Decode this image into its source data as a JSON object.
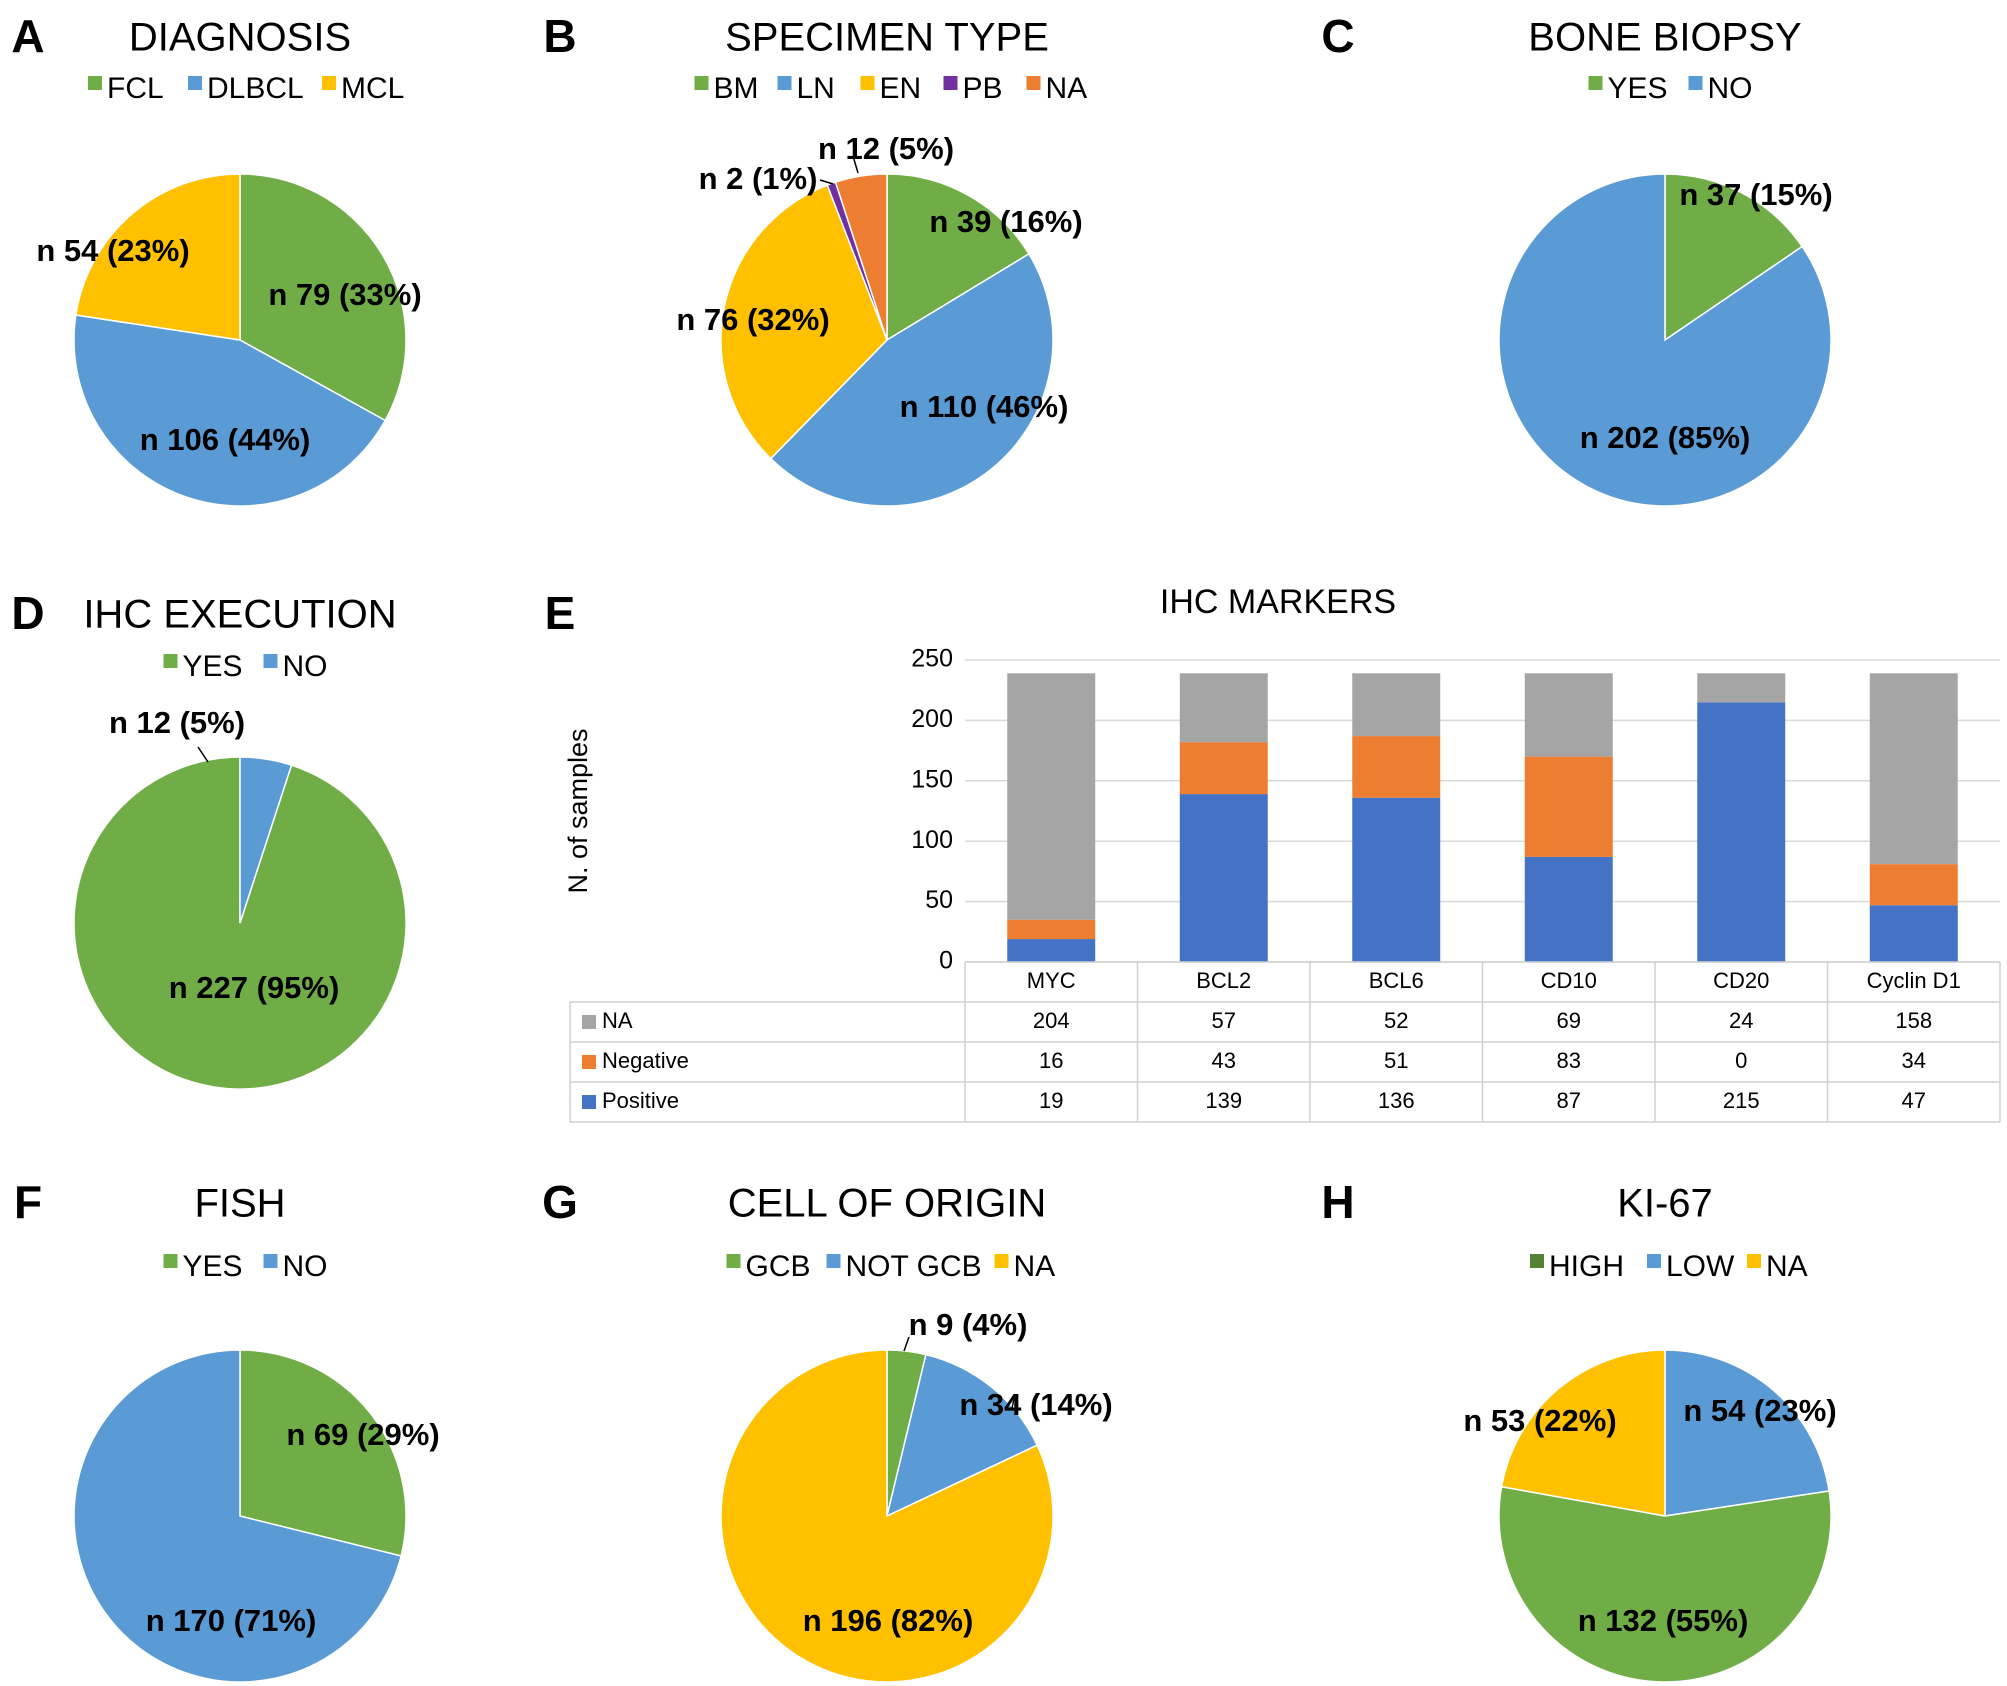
{
  "figure": {
    "background": "#ffffff"
  },
  "chart_data": [
    {
      "id": "A",
      "type": "pie",
      "panel_letter": "A",
      "title": "DIAGNOSIS",
      "legend": [
        "FCL",
        "DLBCL",
        "MCL"
      ],
      "slices": [
        {
          "name": "FCL",
          "value": 79,
          "label": "n 79 (33%)",
          "color": "#70ad47"
        },
        {
          "name": "DLBCL",
          "value": 106,
          "label": "n 106 (44%)",
          "color": "#5b9bd5"
        },
        {
          "name": "MCL",
          "value": 54,
          "label": "n 54 (23%)",
          "color": "#ffc000"
        }
      ]
    },
    {
      "id": "B",
      "type": "pie",
      "panel_letter": "B",
      "title": "SPECIMEN TYPE",
      "legend": [
        "BM",
        "LN",
        "EN",
        "PB",
        "NA"
      ],
      "slices": [
        {
          "name": "BM",
          "value": 39,
          "label": "n 39 (16%)",
          "color": "#70ad47"
        },
        {
          "name": "LN",
          "value": 110,
          "label": "n 110 (46%)",
          "color": "#5b9bd5"
        },
        {
          "name": "EN",
          "value": 76,
          "label": "n 76 (32%)",
          "color": "#ffc000"
        },
        {
          "name": "PB",
          "value": 2,
          "label": "n 2 (1%)",
          "color": "#7030a0"
        },
        {
          "name": "NA",
          "value": 12,
          "label": "n 12 (5%)",
          "color": "#ed7d31"
        }
      ]
    },
    {
      "id": "C",
      "type": "pie",
      "panel_letter": "C",
      "title": "BONE BIOPSY",
      "legend": [
        "YES",
        "NO"
      ],
      "slices": [
        {
          "name": "YES",
          "value": 37,
          "label": "n 37 (15%)",
          "color": "#70ad47"
        },
        {
          "name": "NO",
          "value": 202,
          "label": "n 202 (85%)",
          "color": "#5b9bd5"
        }
      ]
    },
    {
      "id": "D",
      "type": "pie",
      "panel_letter": "D",
      "title": "IHC EXECUTION",
      "legend": [
        "YES",
        "NO"
      ],
      "slices": [
        {
          "name": "YES",
          "value": 227,
          "label": "n 227 (95%)",
          "color": "#70ad47"
        },
        {
          "name": "NO",
          "value": 12,
          "label": "n 12 (5%)",
          "color": "#5b9bd5"
        }
      ]
    },
    {
      "id": "E",
      "type": "bar",
      "stacked": true,
      "panel_letter": "E",
      "title": "IHC MARKERS",
      "xlabel": "",
      "ylabel": "N. of samples",
      "ylim": [
        0,
        250
      ],
      "yticks": [
        0,
        50,
        100,
        150,
        200,
        250
      ],
      "grid": true,
      "categories": [
        "MYC",
        "BCL2",
        "BCL6",
        "CD10",
        "CD20",
        "Cyclin D1"
      ],
      "series": [
        {
          "name": "Positive",
          "color": "#4472c4",
          "values": [
            19,
            139,
            136,
            87,
            215,
            47
          ]
        },
        {
          "name": "Negative",
          "color": "#ed7d31",
          "values": [
            16,
            43,
            51,
            83,
            0,
            34
          ]
        },
        {
          "name": "NA",
          "color": "#a5a5a5",
          "values": [
            204,
            57,
            52,
            69,
            24,
            158
          ]
        }
      ],
      "table_rows": [
        "NA",
        "Negative",
        "Positive"
      ]
    },
    {
      "id": "F",
      "type": "pie",
      "panel_letter": "F",
      "title": "FISH",
      "legend": [
        "YES",
        "NO"
      ],
      "slices": [
        {
          "name": "YES",
          "value": 69,
          "label": "n 69 (29%)",
          "color": "#70ad47"
        },
        {
          "name": "NO",
          "value": 170,
          "label": "n 170 (71%)",
          "color": "#5b9bd5"
        }
      ]
    },
    {
      "id": "G",
      "type": "pie",
      "panel_letter": "G",
      "title": "CELL OF ORIGIN",
      "legend": [
        "GCB",
        "NOT GCB",
        "NA"
      ],
      "slices": [
        {
          "name": "GCB",
          "value": 9,
          "label": "n 9 (4%)",
          "color": "#70ad47"
        },
        {
          "name": "NOT GCB",
          "value": 34,
          "label": "n 34 (14%)",
          "color": "#5b9bd5"
        },
        {
          "name": "NA",
          "value": 196,
          "label": "n 196 (82%)",
          "color": "#ffc000"
        }
      ]
    },
    {
      "id": "H",
      "type": "pie",
      "panel_letter": "H",
      "title": "KI-67",
      "legend": [
        "HIGH",
        "LOW",
        "NA"
      ],
      "legend_colors": [
        "#548235",
        "#5b9bd5",
        "#ffc000"
      ],
      "slices": [
        {
          "name": "LOW",
          "value": 54,
          "label": "n 54 (23%)",
          "color": "#5b9bd5"
        },
        {
          "name": "HIGH",
          "value": 132,
          "label": "n 132 (55%)",
          "color": "#70ad47"
        },
        {
          "name": "NA",
          "value": 53,
          "label": "n 53 (22%)",
          "color": "#ffc000"
        }
      ]
    }
  ]
}
